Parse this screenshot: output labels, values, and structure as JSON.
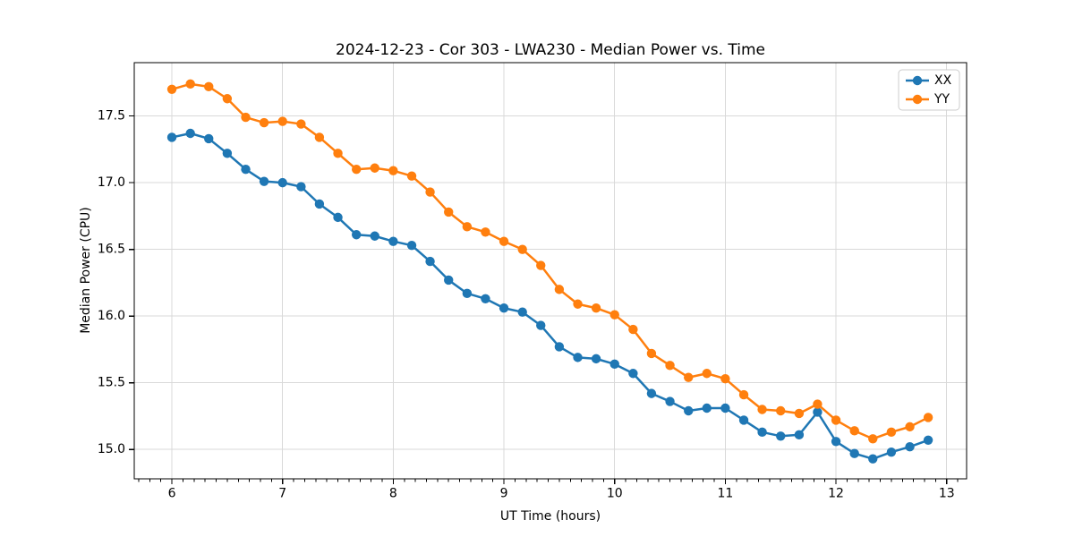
{
  "chart_data": {
    "type": "line",
    "title": "2024-12-23 - Cor 303 - LWA230 - Median Power vs. Time",
    "xlabel": "UT Time (hours)",
    "ylabel": "Median Power (CPU)",
    "xlim": [
      5.66,
      13.18
    ],
    "ylim": [
      14.78,
      17.9
    ],
    "x_ticks": [
      6,
      7,
      8,
      9,
      10,
      11,
      12,
      13
    ],
    "x_tick_labels": [
      "6",
      "7",
      "8",
      "9",
      "10",
      "11",
      "12",
      "13"
    ],
    "x_minor_step": 0.1,
    "y_ticks": [
      15.0,
      15.5,
      16.0,
      16.5,
      17.0,
      17.5
    ],
    "y_tick_labels": [
      "15.0",
      "15.5",
      "16.0",
      "16.5",
      "17.0",
      "17.5"
    ],
    "grid": true,
    "legend_position": "upper right",
    "marker": "circle",
    "colors": {
      "grid": "#d9d9d9",
      "axes": "#000000",
      "legend_border": "#cccccc",
      "background": "#ffffff"
    },
    "x": [
      6.0,
      6.167,
      6.333,
      6.5,
      6.667,
      6.833,
      7.0,
      7.167,
      7.333,
      7.5,
      7.667,
      7.833,
      8.0,
      8.167,
      8.333,
      8.5,
      8.667,
      8.833,
      9.0,
      9.167,
      9.333,
      9.5,
      9.667,
      9.833,
      10.0,
      10.167,
      10.333,
      10.5,
      10.667,
      10.833,
      11.0,
      11.167,
      11.333,
      11.5,
      11.667,
      11.833,
      12.0,
      12.167,
      12.333,
      12.5,
      12.667,
      12.833
    ],
    "series": [
      {
        "name": "XX",
        "color": "#1f77b4",
        "values": [
          17.34,
          17.37,
          17.33,
          17.22,
          17.1,
          17.01,
          17.0,
          16.97,
          16.84,
          16.74,
          16.61,
          16.6,
          16.56,
          16.53,
          16.41,
          16.27,
          16.17,
          16.13,
          16.06,
          16.03,
          15.93,
          15.77,
          15.69,
          15.68,
          15.64,
          15.57,
          15.42,
          15.36,
          15.29,
          15.31,
          15.31,
          15.22,
          15.13,
          15.1,
          15.11,
          15.28,
          15.06,
          14.97,
          14.93,
          14.98,
          15.02,
          15.07
        ]
      },
      {
        "name": "YY",
        "color": "#ff7f0e",
        "values": [
          17.7,
          17.74,
          17.72,
          17.63,
          17.49,
          17.45,
          17.46,
          17.44,
          17.34,
          17.22,
          17.1,
          17.11,
          17.09,
          17.05,
          16.93,
          16.78,
          16.67,
          16.63,
          16.56,
          16.5,
          16.38,
          16.2,
          16.09,
          16.06,
          16.01,
          15.9,
          15.72,
          15.63,
          15.54,
          15.57,
          15.53,
          15.41,
          15.3,
          15.29,
          15.27,
          15.34,
          15.22,
          15.14,
          15.08,
          15.13,
          15.17,
          15.24
        ]
      }
    ]
  }
}
